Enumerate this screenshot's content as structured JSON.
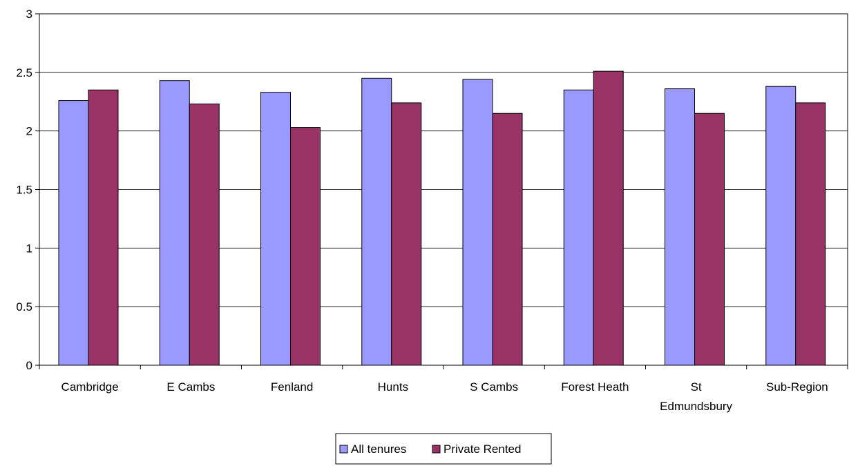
{
  "chart_data": {
    "type": "bar",
    "categories": [
      [
        "Cambridge"
      ],
      [
        "E Cambs"
      ],
      [
        "Fenland"
      ],
      [
        "Hunts"
      ],
      [
        "S Cambs"
      ],
      [
        "Forest Heath"
      ],
      [
        "St",
        "Edmundsbury"
      ],
      [
        "Sub-Region"
      ]
    ],
    "series": [
      {
        "name": "All tenures",
        "color": "#9999ff",
        "values": [
          2.26,
          2.43,
          2.33,
          2.45,
          2.44,
          2.35,
          2.36,
          2.38
        ]
      },
      {
        "name": "Private Rented",
        "color": "#993366",
        "values": [
          2.35,
          2.23,
          2.03,
          2.24,
          2.15,
          2.51,
          2.15,
          2.24
        ]
      }
    ],
    "ylim": [
      0,
      3
    ],
    "yticks": [
      0,
      0.5,
      1,
      1.5,
      2,
      2.5,
      3
    ],
    "ytick_labels": [
      "0",
      "0.5",
      "1",
      "1.5",
      "2",
      "2.5",
      "3"
    ],
    "grid": true,
    "legend": "bottom-center",
    "title": "",
    "xlabel": "",
    "ylabel": ""
  }
}
